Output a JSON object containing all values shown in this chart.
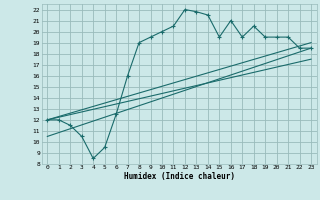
{
  "title": "",
  "xlabel": "Humidex (Indice chaleur)",
  "bg_color": "#cce8e8",
  "grid_color": "#99bbbb",
  "line_color": "#1a6b6b",
  "xlim": [
    -0.5,
    23.5
  ],
  "ylim": [
    8,
    22.5
  ],
  "xticks": [
    0,
    1,
    2,
    3,
    4,
    5,
    6,
    7,
    8,
    9,
    10,
    11,
    12,
    13,
    14,
    15,
    16,
    17,
    18,
    19,
    20,
    21,
    22,
    23
  ],
  "yticks": [
    8,
    9,
    10,
    11,
    12,
    13,
    14,
    15,
    16,
    17,
    18,
    19,
    20,
    21,
    22
  ],
  "curve1_x": [
    0,
    1,
    2,
    3,
    4,
    5,
    6,
    7,
    8,
    9,
    10,
    11,
    12,
    13,
    14,
    15,
    16,
    17,
    18,
    19,
    20,
    21,
    22,
    23
  ],
  "curve1_y": [
    12,
    12,
    11.5,
    10.5,
    8.5,
    9.5,
    12.5,
    16.0,
    19.0,
    19.5,
    20.0,
    20.5,
    22.0,
    21.8,
    21.5,
    19.5,
    21.0,
    19.5,
    20.5,
    19.5,
    19.5,
    19.5,
    18.5,
    18.5
  ],
  "line1_x": [
    0,
    23
  ],
  "line1_y": [
    12.0,
    19.0
  ],
  "line2_x": [
    0,
    23
  ],
  "line2_y": [
    12.0,
    17.5
  ],
  "line3_x": [
    0,
    23
  ],
  "line3_y": [
    10.5,
    18.5
  ]
}
